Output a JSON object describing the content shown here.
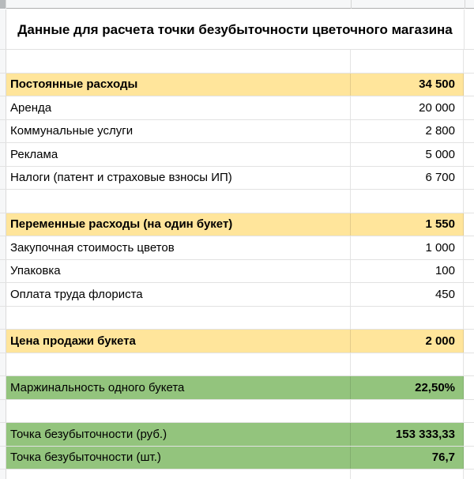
{
  "app": {
    "kind": "spreadsheet",
    "title": "Данные для расчета точки безубыточности цветочного магазина"
  },
  "colors": {
    "section_bg": "#ffe59b",
    "result_bg": "#93c47d",
    "gridline": "#e2e2e2",
    "header_strip_bg": "#f6f7f8",
    "corner_box": "#b7babc",
    "text": "#000000"
  },
  "rows": [
    {
      "type": "title",
      "label": "Данные для расчета точки безубыточности цветочного магазина",
      "value": ""
    },
    {
      "type": "empty",
      "label": "",
      "value": ""
    },
    {
      "type": "section",
      "label": "Постоянные расходы",
      "value": "34 500"
    },
    {
      "type": "item",
      "label": "Аренда",
      "value": "20 000"
    },
    {
      "type": "item",
      "label": "Коммунальные услуги",
      "value": "2 800"
    },
    {
      "type": "item",
      "label": "Реклама",
      "value": "5 000"
    },
    {
      "type": "item",
      "label": "Налоги (патент и страховые взносы ИП)",
      "value": "6 700"
    },
    {
      "type": "empty",
      "label": "",
      "value": ""
    },
    {
      "type": "section",
      "label": "Переменные расходы (на один букет)",
      "value": "1 550"
    },
    {
      "type": "item",
      "label": "Закупочная стоимость цветов",
      "value": "1 000"
    },
    {
      "type": "item",
      "label": "Упаковка",
      "value": "100"
    },
    {
      "type": "item",
      "label": "Оплата труда флориста",
      "value": "450"
    },
    {
      "type": "empty",
      "label": "",
      "value": ""
    },
    {
      "type": "section",
      "label": "Цена продажи букета",
      "value": "2 000"
    },
    {
      "type": "empty",
      "label": "",
      "value": ""
    },
    {
      "type": "result",
      "label": "Маржинальность одного букета",
      "value": "22,50%"
    },
    {
      "type": "empty",
      "label": "",
      "value": ""
    },
    {
      "type": "result",
      "label": "Точка безубыточности (руб.)",
      "value": "153 333,33"
    },
    {
      "type": "result",
      "label": "Точка безубыточности (шт.)",
      "value": "76,7"
    }
  ]
}
